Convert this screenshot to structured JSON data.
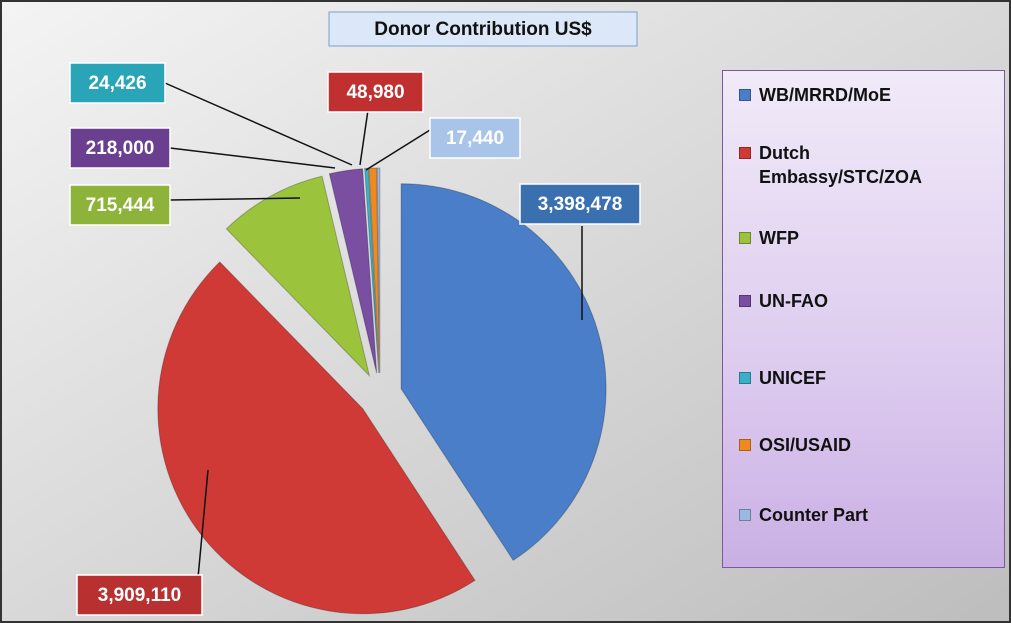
{
  "chart_data": {
    "type": "pie",
    "title": "Donor Contribution US$",
    "categories": [
      "WB/MRRD/MoE",
      "Dutch Embassy/STC/ZOA",
      "WFP",
      "UN-FAO",
      "UNICEF",
      "OSI/USAID",
      "Counter Part"
    ],
    "values": [
      3398478,
      3909110,
      715444,
      218000,
      24426,
      48980,
      17440
    ],
    "value_labels": [
      "3,398,478",
      "3,909,110",
      "715,444",
      "218,000",
      "24,426",
      "48,980",
      "17,440"
    ],
    "colors": [
      "#4a7ec8",
      "#d03a36",
      "#9bc43c",
      "#7a4ea0",
      "#3ab0c8",
      "#f08a20",
      "#9ab8e0"
    ],
    "legend": "right"
  }
}
